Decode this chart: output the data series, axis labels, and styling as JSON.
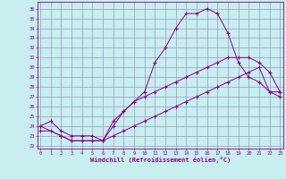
{
  "title": "",
  "xlabel": "Windchill (Refroidissement éolien,°C)",
  "background_color": "#c8eef0",
  "grid_color": "#9999bb",
  "line_color": "#880088",
  "x_ticks": [
    0,
    1,
    2,
    3,
    4,
    5,
    6,
    7,
    8,
    9,
    10,
    11,
    12,
    13,
    14,
    15,
    16,
    17,
    18,
    19,
    20,
    21,
    22,
    23
  ],
  "y_ticks": [
    22,
    23,
    24,
    25,
    26,
    27,
    28,
    29,
    30,
    31,
    32,
    33,
    34,
    35,
    36
  ],
  "line1_x": [
    0,
    1,
    2,
    3,
    4,
    5,
    6,
    7,
    8,
    9,
    10,
    11,
    12,
    13,
    14,
    15,
    16,
    17,
    18,
    19,
    20,
    21,
    22,
    23
  ],
  "line1_y": [
    24.0,
    24.5,
    23.5,
    23.0,
    23.0,
    23.0,
    22.5,
    24.0,
    25.5,
    26.5,
    27.5,
    30.5,
    32.0,
    34.0,
    35.5,
    35.5,
    36.0,
    35.5,
    33.5,
    30.5,
    29.0,
    28.5,
    27.5,
    27.0
  ],
  "line2_x": [
    0,
    2,
    3,
    4,
    5,
    6,
    7,
    8,
    9,
    10,
    11,
    12,
    13,
    14,
    15,
    16,
    17,
    18,
    19,
    20,
    21,
    22,
    23
  ],
  "line2_y": [
    24.0,
    23.0,
    22.5,
    22.5,
    22.5,
    22.5,
    24.5,
    25.5,
    26.5,
    27.0,
    27.5,
    28.0,
    28.5,
    29.0,
    29.5,
    30.0,
    30.5,
    31.0,
    31.0,
    31.0,
    30.5,
    29.5,
    27.5
  ],
  "line3_x": [
    0,
    1,
    2,
    3,
    4,
    5,
    6,
    7,
    8,
    9,
    10,
    11,
    12,
    13,
    14,
    15,
    16,
    17,
    18,
    19,
    20,
    21,
    22,
    23
  ],
  "line3_y": [
    23.5,
    23.5,
    23.0,
    22.5,
    22.5,
    22.5,
    22.5,
    23.0,
    23.5,
    24.0,
    24.5,
    25.0,
    25.5,
    26.0,
    26.5,
    27.0,
    27.5,
    28.0,
    28.5,
    29.0,
    29.5,
    30.0,
    27.5,
    27.5
  ]
}
